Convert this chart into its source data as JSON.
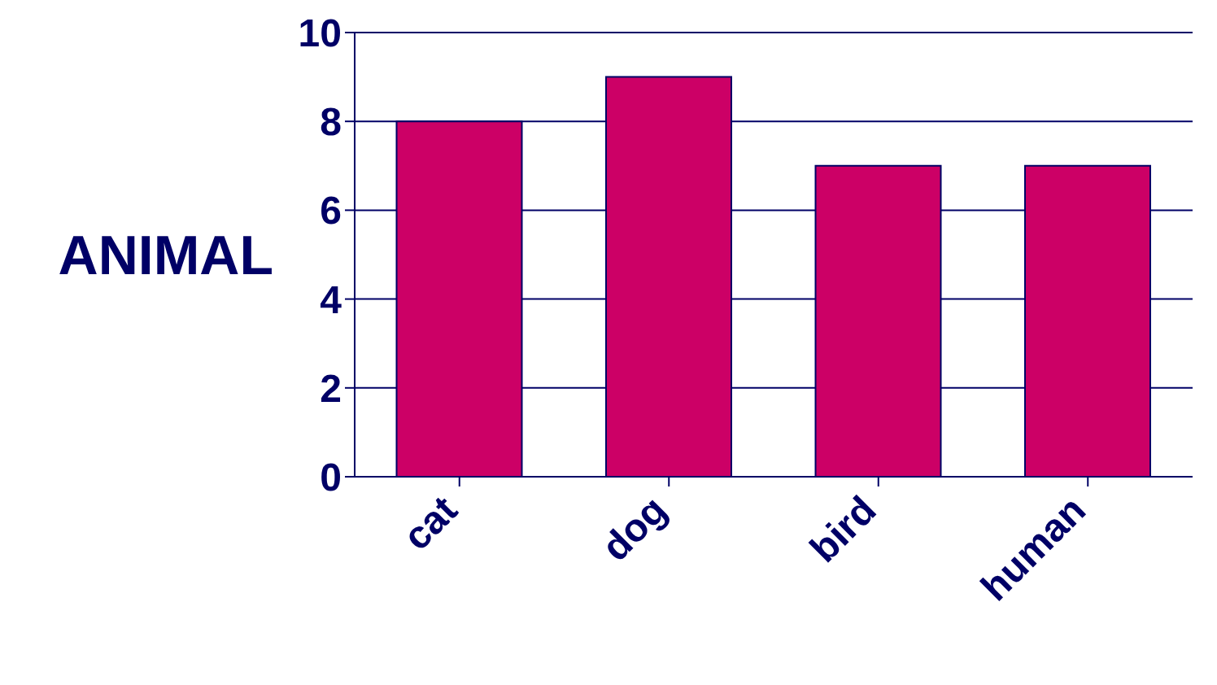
{
  "chart_data": {
    "type": "bar",
    "ylabel": "ANIMAL",
    "categories": [
      "cat",
      "dog",
      "bird",
      "human"
    ],
    "values": [
      8,
      9,
      7,
      7
    ],
    "color": "#cc0066",
    "ylim": [
      0,
      10
    ],
    "yticks": [
      0,
      2,
      4,
      6,
      8,
      10
    ],
    "grid": "y"
  }
}
